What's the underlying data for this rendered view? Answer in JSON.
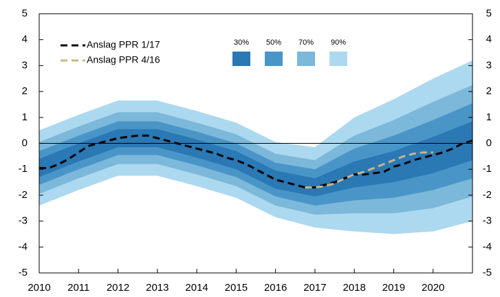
{
  "chart_data": {
    "type": "fan",
    "xlim": [
      2010,
      2021
    ],
    "xticks": [
      2010,
      2011,
      2012,
      2013,
      2014,
      2015,
      2016,
      2017,
      2018,
      2019,
      2020
    ],
    "ylim": [
      -5,
      5
    ],
    "yticks": [
      5,
      4,
      3,
      2,
      1,
      0,
      -1,
      -2,
      -3,
      -4,
      -5
    ],
    "y2lim": [
      -5,
      5
    ],
    "y2ticks": [
      5,
      4,
      3,
      2,
      1,
      0,
      -1,
      -2,
      -3,
      -4,
      -5
    ],
    "band_x": [
      2010,
      2011,
      2012,
      2013,
      2014,
      2015,
      2016,
      2017,
      2018,
      2019,
      2020,
      2021
    ],
    "bands": [
      {
        "name": "90%",
        "color": "#acd9ef",
        "upper": [
          0.5,
          1.1,
          1.65,
          1.65,
          1.25,
          0.8,
          0.05,
          -0.15,
          1.0,
          1.7,
          2.5,
          3.2
        ],
        "lower": [
          -2.4,
          -1.8,
          -1.25,
          -1.25,
          -1.65,
          -2.1,
          -2.85,
          -3.25,
          -3.4,
          -3.5,
          -3.4,
          -3.0
        ]
      },
      {
        "name": "70%",
        "color": "#7cb8da",
        "upper": [
          0.05,
          0.65,
          1.2,
          1.2,
          0.8,
          0.35,
          -0.4,
          -0.65,
          0.3,
          0.9,
          1.6,
          2.25
        ],
        "lower": [
          -1.95,
          -1.35,
          -0.8,
          -0.8,
          -1.2,
          -1.65,
          -2.4,
          -2.75,
          -2.7,
          -2.7,
          -2.5,
          -2.05
        ]
      },
      {
        "name": "50%",
        "color": "#4a95c8",
        "upper": [
          -0.3,
          0.3,
          0.85,
          0.85,
          0.45,
          0,
          -0.75,
          -1.0,
          -0.2,
          0.3,
          0.9,
          1.55
        ],
        "lower": [
          -1.6,
          -1.0,
          -0.45,
          -0.45,
          -0.85,
          -1.3,
          -2.05,
          -2.4,
          -2.2,
          -2.1,
          -1.8,
          -1.35
        ]
      },
      {
        "name": "30%",
        "color": "#2a78b4",
        "upper": [
          -0.6,
          0,
          0.55,
          0.55,
          0.15,
          -0.3,
          -1.05,
          -1.35,
          -0.7,
          -0.3,
          0.25,
          0.85
        ],
        "lower": [
          -1.3,
          -0.7,
          -0.15,
          -0.15,
          -0.55,
          -1.0,
          -1.75,
          -2.05,
          -1.7,
          -1.5,
          -1.15,
          -0.65
        ]
      }
    ],
    "series": [
      {
        "name": "Anslag PPR 1/17",
        "color": "#000000",
        "x": [
          2010,
          2010.25,
          2010.5,
          2010.75,
          2011,
          2011.25,
          2011.5,
          2011.75,
          2012,
          2012.25,
          2012.5,
          2012.75,
          2013,
          2013.25,
          2013.5,
          2013.75,
          2014,
          2014.25,
          2014.5,
          2014.75,
          2015,
          2015.25,
          2015.5,
          2015.75,
          2016,
          2016.25,
          2016.5,
          2016.75,
          2017,
          2017.25,
          2017.5,
          2017.75,
          2018,
          2018.25,
          2018.5,
          2018.75,
          2019,
          2019.25,
          2019.5,
          2019.75,
          2020,
          2020.25,
          2020.5,
          2020.75,
          2021
        ],
        "values": [
          -0.95,
          -0.95,
          -0.8,
          -0.6,
          -0.35,
          -0.1,
          0.0,
          0.1,
          0.2,
          0.25,
          0.3,
          0.3,
          0.2,
          0.1,
          0.0,
          -0.1,
          -0.2,
          -0.3,
          -0.4,
          -0.55,
          -0.65,
          -0.8,
          -1.0,
          -1.2,
          -1.4,
          -1.5,
          -1.6,
          -1.7,
          -1.7,
          -1.6,
          -1.5,
          -1.35,
          -1.2,
          -1.2,
          -1.15,
          -1.1,
          -0.9,
          -0.8,
          -0.65,
          -0.55,
          -0.45,
          -0.35,
          -0.2,
          0.0,
          0.1
        ]
      },
      {
        "name": "Anslag PPR 4/16",
        "color": "#c8b88a",
        "x": [
          2016.75,
          2017,
          2017.25,
          2017.5,
          2017.75,
          2018,
          2018.25,
          2018.5,
          2018.75,
          2019,
          2019.25,
          2019.5,
          2019.75,
          2020
        ],
        "values": [
          -1.7,
          -1.7,
          -1.65,
          -1.55,
          -1.35,
          -1.2,
          -1.1,
          -0.95,
          -0.8,
          -0.65,
          -0.5,
          -0.4,
          -0.35,
          -0.35
        ]
      }
    ]
  }
}
